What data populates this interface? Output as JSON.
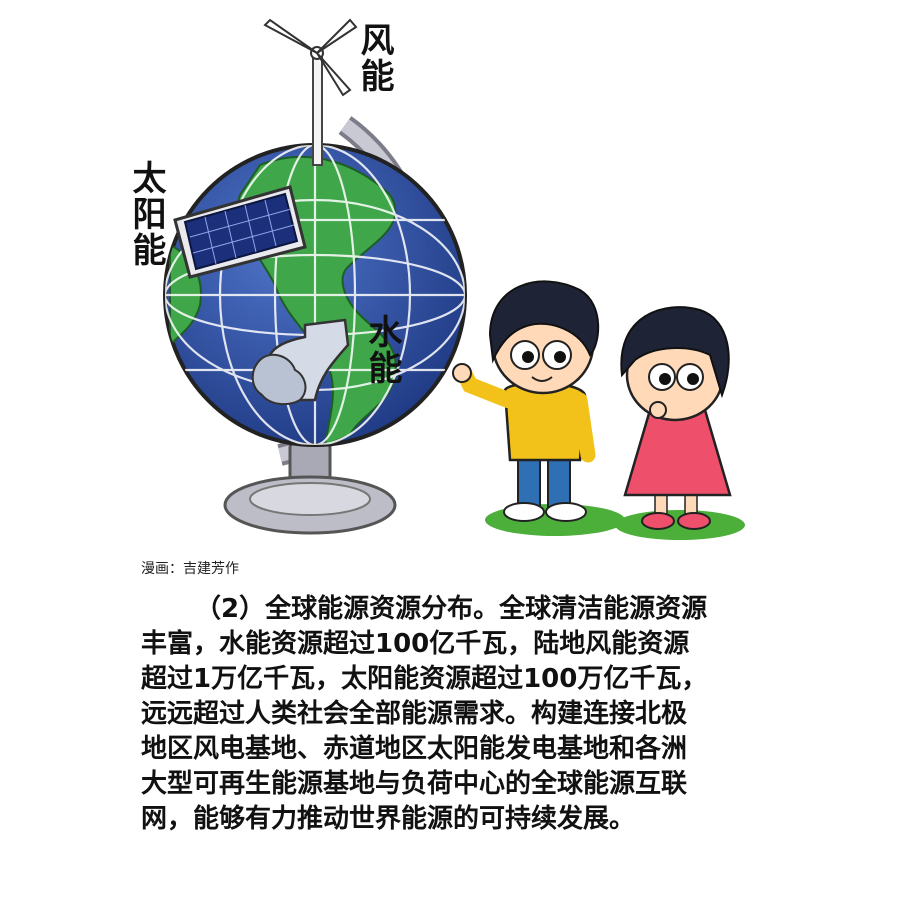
{
  "labels": {
    "wind": "风能",
    "solar": "太阳能",
    "water": "水能"
  },
  "credit": "漫画：吉建芳作",
  "paragraph": {
    "lines": [
      "（2）全球能源资源分布。全球清洁能源资源",
      "丰富，水能资源超过100亿千瓦，陆地风能资源",
      "超过1万亿千瓦，太阳能资源超过100万亿千瓦，",
      "远远超过人类社会全部能源需求。构建连接北极",
      "地区风电基地、赤道地区太阳能发电基地和各洲",
      "大型可再生能源基地与负荷中心的全球能源互联",
      "网，能够有力推动世界能源的可持续发展。"
    ]
  },
  "colors": {
    "ocean": "#2f4f9e",
    "land": "#3fa64a",
    "stand": "#b9b9c4",
    "boy_shirt": "#f3c21a",
    "girl_dress": "#ee4f6a",
    "grass": "#4caf3a"
  }
}
